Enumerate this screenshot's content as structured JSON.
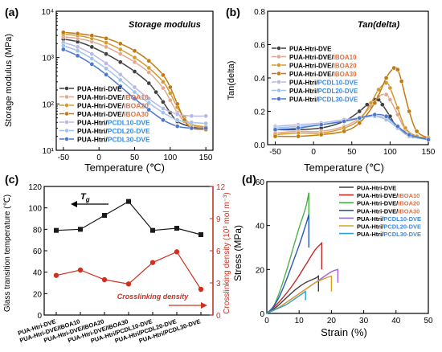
{
  "panels": {
    "a": {
      "letter": "(a)",
      "title": "Storage modulus",
      "ylabel": "Storage modulus (MPa)",
      "xlabel": "Temperature (℃)"
    },
    "b": {
      "letter": "(b)",
      "title": "Tan(delta)",
      "ylabel": "Tan(delta)",
      "xlabel": "Temperature (℃)"
    },
    "c": {
      "letter": "(c)",
      "ylabel_left": "Glass transition temperature (℃)",
      "ylabel_right": "Crosslinking density (10³ mol m⁻³)",
      "annotation_tg": "T",
      "annotation_tg_sub": "g",
      "annotation_cd": "Crosslinking density"
    },
    "d": {
      "letter": "(d)",
      "ylabel": "Stress (MPa)",
      "xlabel": "Strain (%)"
    }
  },
  "legend_entries": [
    {
      "prefix": "PUA-Htri-DVE",
      "suffix": ""
    },
    {
      "prefix": "PUA-Htri-DVE/",
      "suffix": "IBOA10"
    },
    {
      "prefix": "PUA-Htri-DVE/",
      "suffix": "IBOA20"
    },
    {
      "prefix": "PUA-Htri-DVE/",
      "suffix": "IBOA30"
    },
    {
      "prefix": "PUA-Htri/",
      "suffix": "PCDL10-DVE"
    },
    {
      "prefix": "PUA-Htri/",
      "suffix": "PCDL20-DVE"
    },
    {
      "prefix": "PUA-Htri/",
      "suffix": "PCDL30-DVE"
    }
  ],
  "colors": {
    "series": [
      "#404040",
      "#e0a890",
      "#d49a2e",
      "#c07a14",
      "#b8b8e8",
      "#9fc3e8",
      "#4a78d0"
    ],
    "series_d": [
      "#404040",
      "#c02a2a",
      "#4fb04f",
      "#2a5ab8",
      "#a060e0",
      "#d8a020",
      "#30a0d0"
    ],
    "suffix_ibo": "#e07040",
    "suffix_pcdl": "#3a8ae0",
    "tg_line": "#1a1a1a",
    "cd_line": "#d03020",
    "cd_axis": "#d03020"
  },
  "chart_data": [
    {
      "id": "a",
      "type": "line",
      "title": "Storage modulus",
      "xlabel": "Temperature (℃)",
      "ylabel": "Storage modulus (MPa)",
      "xlim": [
        -60,
        160
      ],
      "ylim": [
        10,
        10000
      ],
      "yscale": "log",
      "xticks": [
        -50,
        0,
        50,
        100,
        150
      ],
      "yticks": [
        10,
        100,
        1000,
        10000
      ],
      "ytick_labels": [
        "10¹",
        "10²",
        "10³",
        "10⁴"
      ],
      "legend": "center-left",
      "series": [
        {
          "name": "PUA-Htri-DVE",
          "x": [
            -50,
            -30,
            -10,
            10,
            30,
            50,
            70,
            80,
            90,
            100,
            110,
            130,
            150
          ],
          "y": [
            2500,
            2200,
            1700,
            1200,
            800,
            500,
            280,
            180,
            110,
            65,
            42,
            32,
            30
          ]
        },
        {
          "name": "PUA-Htri-DVE/IBOA10",
          "x": [
            -50,
            -30,
            -10,
            10,
            30,
            50,
            70,
            90,
            100,
            110,
            120,
            130,
            150
          ],
          "y": [
            2800,
            2600,
            2200,
            1700,
            1200,
            800,
            480,
            220,
            120,
            65,
            42,
            34,
            30
          ]
        },
        {
          "name": "PUA-Htri-DVE/IBOA20",
          "x": [
            -50,
            -30,
            -10,
            10,
            30,
            50,
            70,
            90,
            100,
            110,
            120,
            130,
            150
          ],
          "y": [
            3200,
            3000,
            2600,
            2100,
            1500,
            1000,
            600,
            300,
            170,
            85,
            50,
            36,
            32
          ]
        },
        {
          "name": "PUA-Htri-DVE/IBOA30",
          "x": [
            -50,
            -30,
            -10,
            10,
            30,
            50,
            70,
            90,
            100,
            110,
            120,
            130,
            150
          ],
          "y": [
            3500,
            3300,
            3000,
            2600,
            2000,
            1400,
            850,
            420,
            230,
            100,
            45,
            30,
            28
          ]
        },
        {
          "name": "PUA-Htri/PCDL10-DVE",
          "x": [
            -50,
            -30,
            -10,
            10,
            30,
            50,
            70,
            90,
            110,
            130,
            150
          ],
          "y": [
            2100,
            1700,
            1200,
            750,
            430,
            230,
            130,
            80,
            60,
            55,
            55
          ]
        },
        {
          "name": "PUA-Htri/PCDL20-DVE",
          "x": [
            -50,
            -30,
            -10,
            10,
            30,
            50,
            70,
            90,
            110,
            130,
            150
          ],
          "y": [
            1800,
            1400,
            950,
            580,
            330,
            180,
            105,
            65,
            45,
            40,
            38
          ]
        },
        {
          "name": "PUA-Htri/PCDL30-DVE",
          "x": [
            -50,
            -30,
            -10,
            10,
            30,
            50,
            70,
            90,
            110,
            130,
            150
          ],
          "y": [
            1500,
            1100,
            720,
            430,
            240,
            130,
            75,
            45,
            33,
            30,
            30
          ]
        }
      ]
    },
    {
      "id": "b",
      "type": "line",
      "title": "Tan(delta)",
      "xlabel": "Temperature (℃)",
      "ylabel": "Tan(delta)",
      "xlim": [
        -60,
        150
      ],
      "ylim": [
        0.0,
        0.8
      ],
      "xticks": [
        -50,
        0,
        50,
        100,
        150
      ],
      "yticks": [
        0.0,
        0.2,
        0.4,
        0.6,
        0.8
      ],
      "legend": "center",
      "series": [
        {
          "name": "PUA-Htri-DVE",
          "x": [
            -50,
            -20,
            10,
            40,
            60,
            70,
            80,
            85,
            90,
            100,
            110,
            130,
            150
          ],
          "y": [
            0.09,
            0.09,
            0.1,
            0.14,
            0.2,
            0.24,
            0.27,
            0.27,
            0.24,
            0.17,
            0.1,
            0.05,
            0.04
          ]
        },
        {
          "name": "PUA-Htri-DVE/IBOA10",
          "x": [
            -50,
            -20,
            10,
            40,
            60,
            75,
            85,
            95,
            100,
            110,
            120,
            135,
            150
          ],
          "y": [
            0.07,
            0.08,
            0.08,
            0.11,
            0.16,
            0.23,
            0.29,
            0.3,
            0.27,
            0.18,
            0.09,
            0.05,
            0.04
          ]
        },
        {
          "name": "PUA-Htri-DVE/IBOA20",
          "x": [
            -50,
            -20,
            10,
            40,
            60,
            75,
            85,
            95,
            100,
            110,
            120,
            135,
            150
          ],
          "y": [
            0.06,
            0.07,
            0.07,
            0.1,
            0.15,
            0.25,
            0.33,
            0.37,
            0.34,
            0.22,
            0.1,
            0.05,
            0.04
          ]
        },
        {
          "name": "PUA-Htri-DVE/IBOA30",
          "x": [
            -50,
            -20,
            10,
            40,
            60,
            80,
            95,
            105,
            110,
            115,
            125,
            135,
            150
          ],
          "y": [
            0.05,
            0.05,
            0.06,
            0.08,
            0.13,
            0.25,
            0.4,
            0.46,
            0.45,
            0.38,
            0.2,
            0.08,
            0.04
          ]
        },
        {
          "name": "PUA-Htri/PCDL10-DVE",
          "x": [
            -50,
            -20,
            10,
            40,
            60,
            80,
            95,
            110,
            125,
            150
          ],
          "y": [
            0.11,
            0.12,
            0.13,
            0.15,
            0.16,
            0.17,
            0.16,
            0.11,
            0.06,
            0.03
          ]
        },
        {
          "name": "PUA-Htri/PCDL20-DVE",
          "x": [
            -50,
            -20,
            10,
            40,
            60,
            80,
            95,
            110,
            125,
            150
          ],
          "y": [
            0.1,
            0.11,
            0.12,
            0.14,
            0.16,
            0.17,
            0.15,
            0.1,
            0.05,
            0.03
          ]
        },
        {
          "name": "PUA-Htri/PCDL30-DVE",
          "x": [
            -50,
            -20,
            10,
            40,
            60,
            80,
            95,
            110,
            125,
            150
          ],
          "y": [
            0.09,
            0.1,
            0.12,
            0.14,
            0.16,
            0.18,
            0.17,
            0.11,
            0.06,
            0.03
          ]
        }
      ]
    },
    {
      "id": "c",
      "type": "line",
      "categories": [
        "PUA-Htri-DVE",
        "PUA-Htri-DVE/IBOA10",
        "PUA-Htri-DVE/IBOA20",
        "PUA-Htri-DVE/IBOA30",
        "PUA-Htri/PCDL10-DVE",
        "PUA-Htri/PCDL20-DVE",
        "PUA-Htri/PCDL30-DVE"
      ],
      "ylabel": "Glass transition temperature (℃)",
      "ylabel_right": "Crosslinking density (10³ mol m⁻³)",
      "ylim": [
        0,
        120
      ],
      "ylim_right": [
        0,
        12
      ],
      "yticks": [
        0,
        20,
        40,
        60,
        80,
        100,
        120
      ],
      "yticks_right": [
        0,
        3,
        6,
        9,
        12
      ],
      "series": [
        {
          "name": "T",
          "axis": "left",
          "values": [
            79,
            80,
            93,
            106,
            79,
            81,
            75
          ]
        },
        {
          "name": "Crosslinking density",
          "axis": "right",
          "values": [
            3.7,
            4.2,
            3.3,
            2.9,
            4.9,
            5.9,
            2.4
          ]
        }
      ]
    },
    {
      "id": "d",
      "type": "line",
      "xlabel": "Strain (%)",
      "ylabel": "Stress (MPa)",
      "xlim": [
        0,
        50
      ],
      "ylim": [
        0,
        60
      ],
      "xticks": [
        0,
        10,
        20,
        30,
        40,
        50
      ],
      "yticks": [
        0,
        20,
        40,
        60
      ],
      "legend": "top-right",
      "series": [
        {
          "name": "PUA-Htri-DVE",
          "x": [
            0,
            3,
            6,
            9,
            12,
            15,
            16,
            16
          ],
          "y": [
            0,
            3,
            7,
            11,
            14,
            16,
            17,
            10
          ]
        },
        {
          "name": "PUA-Htri-DVE/IBOA10",
          "x": [
            0,
            3,
            6,
            9,
            12,
            15,
            17,
            17
          ],
          "y": [
            0,
            4,
            9,
            15,
            22,
            29,
            32,
            20
          ]
        },
        {
          "name": "PUA-Htri-DVE/IBOA20",
          "x": [
            0,
            2,
            4,
            6,
            8,
            10,
            12,
            13,
            13
          ],
          "y": [
            0,
            3,
            10,
            19,
            29,
            39,
            48,
            55,
            44
          ]
        },
        {
          "name": "PUA-Htri-DVE/IBOA30",
          "x": [
            0,
            2,
            4,
            6,
            8,
            10,
            12,
            13,
            13
          ],
          "y": [
            0,
            3,
            8,
            15,
            23,
            31,
            40,
            45,
            30
          ]
        },
        {
          "name": "PUA-Htri/PCDL10-DVE",
          "x": [
            0,
            4,
            8,
            12,
            16,
            20,
            22,
            22
          ],
          "y": [
            0,
            3,
            7,
            11,
            15,
            19,
            20,
            14
          ]
        },
        {
          "name": "PUA-Htri/PCDL20-DVE",
          "x": [
            0,
            4,
            8,
            12,
            15,
            18,
            20,
            20
          ],
          "y": [
            0,
            3,
            7,
            11,
            14,
            16,
            17,
            10
          ]
        },
        {
          "name": "PUA-Htri/PCDL30-DVE",
          "x": [
            0,
            3,
            6,
            9,
            11,
            12,
            12
          ],
          "y": [
            0,
            2,
            4,
            7,
            9,
            10,
            6
          ]
        }
      ]
    }
  ]
}
